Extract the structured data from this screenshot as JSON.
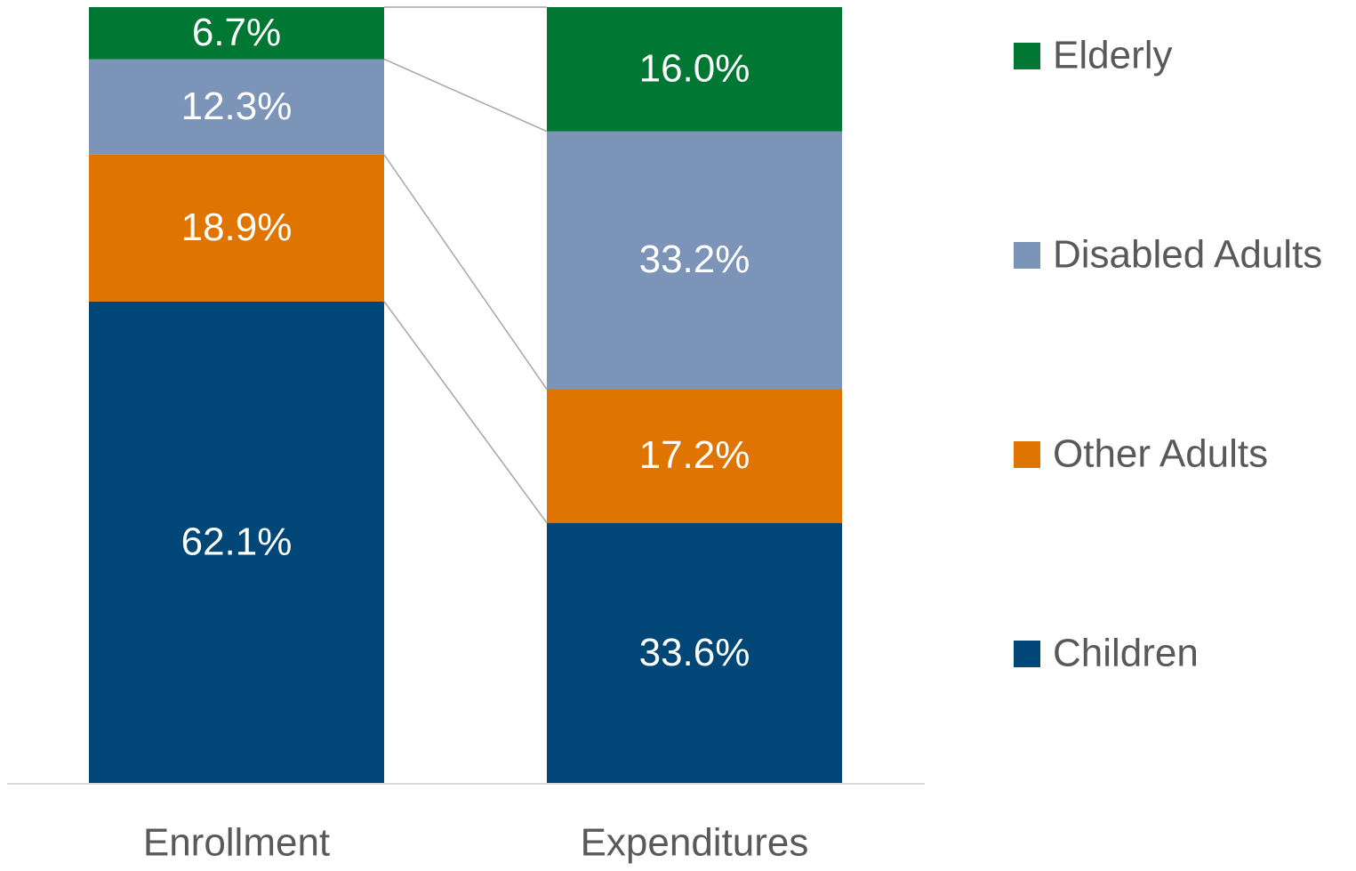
{
  "chart_data": {
    "type": "stacked_bar_100",
    "categories": [
      "Enrollment",
      "Expenditures"
    ],
    "series": [
      {
        "name": "Children",
        "color": "#004777",
        "values": [
          62.1,
          33.6
        ],
        "value_labels": [
          "62.1%",
          "33.6%"
        ]
      },
      {
        "name": "Other Adults",
        "color": "#e07400",
        "values": [
          18.9,
          17.2
        ],
        "value_labels": [
          "18.9%",
          "17.2%"
        ]
      },
      {
        "name": "Disabled Adults",
        "color": "#7b94b8",
        "values": [
          12.3,
          33.2
        ],
        "value_labels": [
          "12.3%",
          "33.2%"
        ]
      },
      {
        "name": "Elderly",
        "color": "#007733",
        "values": [
          6.7,
          16.0
        ],
        "value_labels": [
          "6.7%",
          "16.0%"
        ]
      }
    ],
    "ylim": [
      0,
      100
    ],
    "legend": "right"
  }
}
